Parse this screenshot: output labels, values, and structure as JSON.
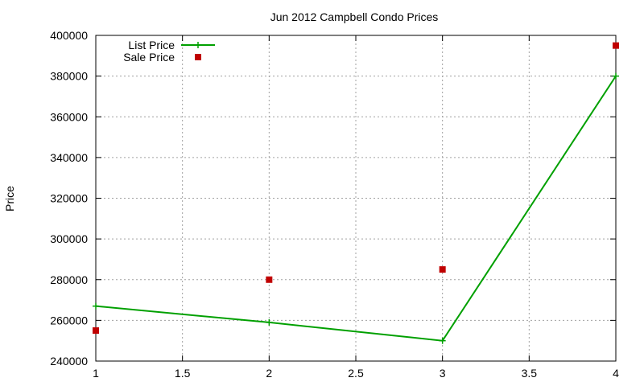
{
  "chart_data": {
    "type": "line",
    "title": "Jun 2012 Campbell Condo Prices",
    "xlabel": "",
    "ylabel": "Price",
    "xlim": [
      1,
      4
    ],
    "ylim": [
      240000,
      400000
    ],
    "x_ticks": [
      1,
      1.5,
      2,
      2.5,
      3,
      3.5,
      4
    ],
    "x_tick_labels": [
      "1",
      "1.5",
      "2",
      "2.5",
      "3",
      "3.5",
      "4"
    ],
    "y_ticks": [
      240000,
      260000,
      280000,
      300000,
      320000,
      340000,
      360000,
      380000,
      400000
    ],
    "y_tick_labels": [
      "240000",
      "260000",
      "280000",
      "300000",
      "320000",
      "340000",
      "360000",
      "380000",
      "400000"
    ],
    "grid": true,
    "legend_position": "top-left",
    "series": [
      {
        "name": "List Price",
        "style": "line-with-plus-markers",
        "color": "#00a000",
        "x": [
          1,
          2,
          3,
          4
        ],
        "values": [
          267000,
          259000,
          250000,
          380000
        ]
      },
      {
        "name": "Sale Price",
        "style": "square-markers",
        "color": "#c00000",
        "x": [
          1,
          2,
          3,
          4
        ],
        "values": [
          255000,
          280000,
          285000,
          395000
        ]
      }
    ]
  }
}
